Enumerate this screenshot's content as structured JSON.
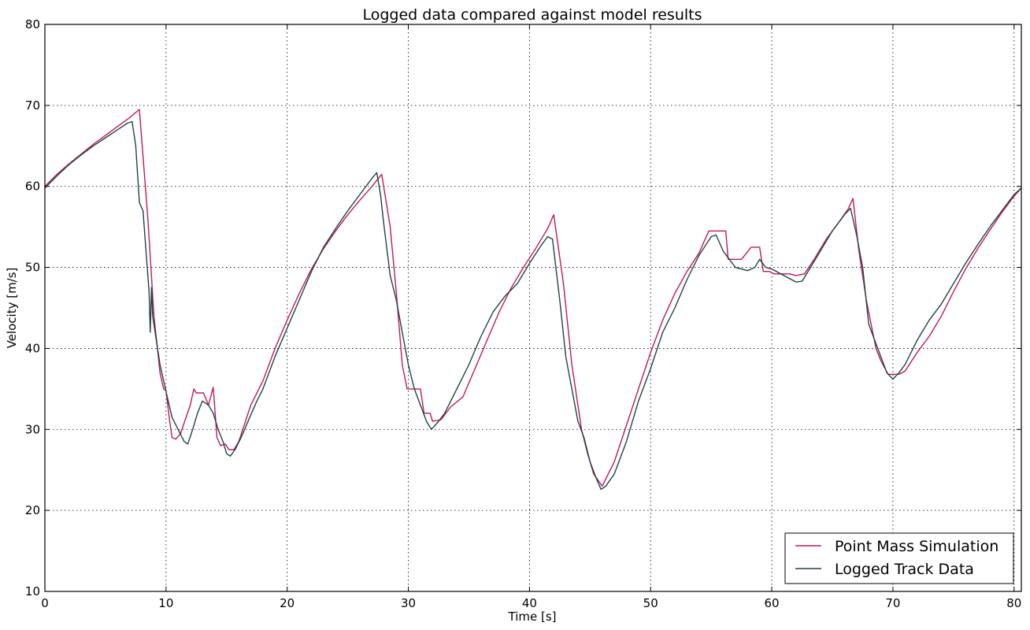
{
  "chart_data": {
    "type": "line",
    "title": "Logged data compared against model results",
    "xlabel": "Time [s]",
    "ylabel": "Velocity [m/s]",
    "xlim": [
      0,
      80.6
    ],
    "ylim": [
      10,
      80
    ],
    "xticks": [
      0,
      10,
      20,
      30,
      40,
      50,
      60,
      70,
      80
    ],
    "yticks": [
      10,
      20,
      30,
      40,
      50,
      60,
      70,
      80
    ],
    "grid": true,
    "legend_position": "lower-right",
    "series": [
      {
        "name": "Point Mass Simulation",
        "color": "#c2185b",
        "points": [
          [
            0,
            60
          ],
          [
            1,
            61.5
          ],
          [
            2,
            62.8
          ],
          [
            3,
            64.0
          ],
          [
            4,
            65.2
          ],
          [
            5,
            66.3
          ],
          [
            6,
            67.4
          ],
          [
            7,
            68.5
          ],
          [
            7.8,
            69.5
          ],
          [
            8.5,
            56
          ],
          [
            9.0,
            44
          ],
          [
            9.5,
            37
          ],
          [
            9.8,
            35
          ],
          [
            10.0,
            34.8
          ],
          [
            10.3,
            31
          ],
          [
            10.5,
            29
          ],
          [
            10.8,
            28.8
          ],
          [
            11.2,
            29.5
          ],
          [
            12.0,
            33
          ],
          [
            12.3,
            35
          ],
          [
            12.5,
            34.5
          ],
          [
            13.1,
            34.5
          ],
          [
            13.5,
            33
          ],
          [
            13.9,
            35.2
          ],
          [
            14.2,
            29
          ],
          [
            14.5,
            28
          ],
          [
            14.9,
            28.2
          ],
          [
            15.2,
            27.5
          ],
          [
            15.6,
            27.5
          ],
          [
            16.0,
            28.5
          ],
          [
            17.0,
            33
          ],
          [
            18.0,
            36
          ],
          [
            19.0,
            40
          ],
          [
            20.0,
            43.5
          ],
          [
            21.0,
            46.8
          ],
          [
            22.0,
            49.8
          ],
          [
            23.0,
            52.3
          ],
          [
            24.0,
            54.5
          ],
          [
            25.0,
            56.5
          ],
          [
            26.0,
            58.3
          ],
          [
            27.0,
            60.0
          ],
          [
            27.8,
            61.5
          ],
          [
            28.5,
            55
          ],
          [
            29.0,
            47
          ],
          [
            29.5,
            38
          ],
          [
            29.9,
            35
          ],
          [
            31.0,
            35
          ],
          [
            31.3,
            32
          ],
          [
            31.8,
            32
          ],
          [
            32.0,
            31
          ],
          [
            32.7,
            31.2
          ],
          [
            33.5,
            32.8
          ],
          [
            34.5,
            34
          ],
          [
            35.5,
            37.5
          ],
          [
            36.5,
            41
          ],
          [
            37.5,
            44.5
          ],
          [
            38.5,
            47.5
          ],
          [
            39.5,
            50.0
          ],
          [
            40.5,
            52.3
          ],
          [
            41.5,
            54.8
          ],
          [
            42.0,
            56.5
          ],
          [
            42.8,
            48
          ],
          [
            43.5,
            38
          ],
          [
            44.3,
            30
          ],
          [
            44.8,
            27
          ],
          [
            45.3,
            24.5
          ],
          [
            46.0,
            23
          ],
          [
            47.0,
            26
          ],
          [
            48.0,
            30.5
          ],
          [
            49.0,
            35
          ],
          [
            50.0,
            39.5
          ],
          [
            51.0,
            43.5
          ],
          [
            52.0,
            46.8
          ],
          [
            53.0,
            49.5
          ],
          [
            54.0,
            51.8
          ],
          [
            54.8,
            54.5
          ],
          [
            56.2,
            54.5
          ],
          [
            56.4,
            51
          ],
          [
            57.5,
            51
          ],
          [
            58.3,
            52.5
          ],
          [
            59.0,
            52.5
          ],
          [
            59.3,
            49.5
          ],
          [
            59.8,
            49.5
          ],
          [
            60.2,
            49.2
          ],
          [
            61.5,
            49.2
          ],
          [
            62.0,
            49
          ],
          [
            62.7,
            49.2
          ],
          [
            63.5,
            51
          ],
          [
            64.5,
            53.5
          ],
          [
            65.5,
            55.5
          ],
          [
            66.3,
            57.2
          ],
          [
            66.7,
            58.5
          ],
          [
            67.2,
            52
          ],
          [
            67.8,
            46
          ],
          [
            68.2,
            43
          ],
          [
            68.6,
            40
          ],
          [
            69.0,
            38.5
          ],
          [
            69.6,
            36.8
          ],
          [
            70.5,
            36.8
          ],
          [
            71.0,
            37.2
          ],
          [
            72.0,
            39.5
          ],
          [
            73.0,
            41.5
          ],
          [
            74.0,
            44
          ],
          [
            75.0,
            47
          ],
          [
            76.0,
            49.8
          ],
          [
            77.0,
            52.3
          ],
          [
            78.0,
            54.6
          ],
          [
            79.0,
            56.8
          ],
          [
            80.0,
            58.8
          ],
          [
            80.6,
            59.8
          ]
        ]
      },
      {
        "name": "Logged Track Data",
        "color": "#1e4447",
        "points": [
          [
            0,
            59.8
          ],
          [
            1,
            61.3
          ],
          [
            2,
            62.7
          ],
          [
            3,
            63.9
          ],
          [
            4,
            65.0
          ],
          [
            5,
            66.0
          ],
          [
            6,
            67.0
          ],
          [
            6.8,
            67.8
          ],
          [
            7.2,
            68
          ],
          [
            7.5,
            65
          ],
          [
            7.8,
            58
          ],
          [
            8.1,
            57
          ],
          [
            8.4,
            51
          ],
          [
            8.6,
            47
          ],
          [
            8.7,
            42
          ],
          [
            8.8,
            47.5
          ],
          [
            8.9,
            44
          ],
          [
            9.2,
            41
          ],
          [
            9.5,
            38
          ],
          [
            9.8,
            36
          ],
          [
            10.1,
            34
          ],
          [
            10.5,
            31.5
          ],
          [
            11.0,
            30
          ],
          [
            11.5,
            28.5
          ],
          [
            11.8,
            28.2
          ],
          [
            12.2,
            30
          ],
          [
            12.6,
            32
          ],
          [
            13.0,
            33.5
          ],
          [
            13.5,
            33
          ],
          [
            13.9,
            32
          ],
          [
            14.3,
            30
          ],
          [
            14.7,
            28.5
          ],
          [
            15.0,
            27
          ],
          [
            15.3,
            26.7
          ],
          [
            15.7,
            27.5
          ],
          [
            16.2,
            29
          ],
          [
            17.0,
            31.8
          ],
          [
            17.5,
            33.5
          ],
          [
            18.0,
            35
          ],
          [
            19.0,
            39
          ],
          [
            20.0,
            42.5
          ],
          [
            21.0,
            46
          ],
          [
            22.0,
            49.5
          ],
          [
            23.0,
            52.5
          ],
          [
            24.0,
            54.8
          ],
          [
            25.0,
            57
          ],
          [
            26.0,
            59
          ],
          [
            27.0,
            61
          ],
          [
            27.4,
            61.7
          ],
          [
            27.7,
            59
          ],
          [
            28.0,
            55
          ],
          [
            28.5,
            49
          ],
          [
            29.0,
            46
          ],
          [
            29.5,
            42
          ],
          [
            30.0,
            38
          ],
          [
            30.5,
            35
          ],
          [
            31.0,
            33
          ],
          [
            31.5,
            31
          ],
          [
            31.9,
            30
          ],
          [
            32.5,
            31
          ],
          [
            33.0,
            32
          ],
          [
            34.0,
            35
          ],
          [
            35.0,
            38
          ],
          [
            36.0,
            41.5
          ],
          [
            37.0,
            44.5
          ],
          [
            38.0,
            46.5
          ],
          [
            39.0,
            48
          ],
          [
            40.0,
            50.5
          ],
          [
            41.0,
            52.8
          ],
          [
            41.5,
            53.8
          ],
          [
            41.9,
            53.5
          ],
          [
            42.5,
            46
          ],
          [
            43.0,
            39
          ],
          [
            43.5,
            35
          ],
          [
            44.0,
            31
          ],
          [
            44.5,
            29
          ],
          [
            45.0,
            26
          ],
          [
            45.5,
            24
          ],
          [
            45.9,
            22.6
          ],
          [
            46.3,
            23
          ],
          [
            47.0,
            24.5
          ],
          [
            48.0,
            28.5
          ],
          [
            49.0,
            33.5
          ],
          [
            50.0,
            37.5
          ],
          [
            51.0,
            42
          ],
          [
            52.0,
            45
          ],
          [
            53.0,
            48.5
          ],
          [
            54.0,
            51.5
          ],
          [
            55.0,
            53.8
          ],
          [
            55.4,
            54
          ],
          [
            56.0,
            52
          ],
          [
            56.5,
            51
          ],
          [
            57.0,
            50
          ],
          [
            57.5,
            49.8
          ],
          [
            58.0,
            49.6
          ],
          [
            58.6,
            50
          ],
          [
            59.0,
            51
          ],
          [
            59.5,
            50
          ],
          [
            60.0,
            49.8
          ],
          [
            61.0,
            49
          ],
          [
            62.0,
            48.2
          ],
          [
            62.5,
            48.3
          ],
          [
            63.0,
            49.5
          ],
          [
            64.0,
            52
          ],
          [
            65.0,
            54.5
          ],
          [
            66.0,
            56.5
          ],
          [
            66.5,
            57.3
          ],
          [
            67.0,
            54
          ],
          [
            67.5,
            50
          ],
          [
            68.0,
            43
          ],
          [
            68.5,
            41
          ],
          [
            69.0,
            39
          ],
          [
            69.5,
            37
          ],
          [
            70.0,
            36.2
          ],
          [
            70.5,
            37
          ],
          [
            71.0,
            38
          ],
          [
            72.0,
            41
          ],
          [
            73.0,
            43.5
          ],
          [
            74.0,
            45.5
          ],
          [
            75.0,
            48
          ],
          [
            76.0,
            50.5
          ],
          [
            77.0,
            52.8
          ],
          [
            78.0,
            55
          ],
          [
            79.0,
            57
          ],
          [
            80.0,
            59
          ],
          [
            80.6,
            59.8
          ]
        ]
      }
    ]
  }
}
